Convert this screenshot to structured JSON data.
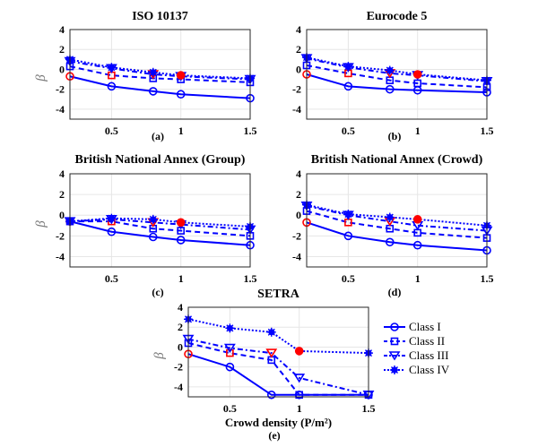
{
  "colors": {
    "series": "#0000ff",
    "highlight": "#ff0000",
    "grid": "#e6e6e6",
    "axis": "#262626"
  },
  "chart_data": [
    {
      "type": "line",
      "id": "a",
      "title": "ISO 10137",
      "panel_label": "(a)",
      "xlabel": "",
      "ylabel": "β",
      "x": [
        0.2,
        0.5,
        0.8,
        1.0,
        1.5
      ],
      "xlim": [
        0.2,
        1.5
      ],
      "ylim": [
        -5,
        4
      ],
      "xticks": [
        0.5,
        1,
        1.5
      ],
      "xtick_labels": [
        "0.5",
        "1",
        "1.5"
      ],
      "yticks": [
        -4,
        -2,
        0,
        2,
        4
      ],
      "ytick_labels": [
        "-4",
        "-2",
        "0",
        "2",
        "4"
      ],
      "grid": true,
      "series": [
        {
          "name": "Class I",
          "values": [
            -0.7,
            -1.7,
            -2.2,
            -2.5,
            -2.9
          ],
          "highlight_index": 0
        },
        {
          "name": "Class II",
          "values": [
            0.3,
            -0.6,
            -0.9,
            -1.0,
            -1.3
          ],
          "highlight_index": 1
        },
        {
          "name": "Class III",
          "values": [
            0.8,
            0.1,
            -0.5,
            -0.7,
            -1.0
          ],
          "highlight_index": 2
        },
        {
          "name": "Class IV",
          "values": [
            1.0,
            0.2,
            -0.3,
            -0.6,
            -0.9
          ],
          "highlight_index": 3
        }
      ]
    },
    {
      "type": "line",
      "id": "b",
      "title": "Eurocode 5",
      "panel_label": "(b)",
      "xlabel": "",
      "ylabel": "",
      "x": [
        0.2,
        0.5,
        0.8,
        1.0,
        1.5
      ],
      "xlim": [
        0.2,
        1.5
      ],
      "ylim": [
        -5,
        4
      ],
      "xticks": [
        0.5,
        1,
        1.5
      ],
      "xtick_labels": [
        "0.5",
        "1",
        "1.5"
      ],
      "yticks": [
        -4,
        -2,
        0,
        2,
        4
      ],
      "ytick_labels": [
        "-4",
        "-2",
        "0",
        "2",
        "4"
      ],
      "grid": true,
      "series": [
        {
          "name": "Class I",
          "values": [
            -0.5,
            -1.7,
            -2.0,
            -2.1,
            -2.3
          ],
          "highlight_index": 0
        },
        {
          "name": "Class II",
          "values": [
            0.4,
            -0.4,
            -1.1,
            -1.4,
            -1.8
          ],
          "highlight_index": 1
        },
        {
          "name": "Class III",
          "values": [
            1.1,
            0.2,
            -0.4,
            -0.6,
            -1.2
          ],
          "highlight_index": 2
        },
        {
          "name": "Class IV",
          "values": [
            1.2,
            0.3,
            -0.1,
            -0.5,
            -1.1
          ],
          "highlight_index": 3
        }
      ]
    },
    {
      "type": "line",
      "id": "c",
      "title": "British National Annex (Group)",
      "panel_label": "(c)",
      "xlabel": "",
      "ylabel": "β",
      "x": [
        0.2,
        0.5,
        0.8,
        1.0,
        1.5
      ],
      "xlim": [
        0.2,
        1.5
      ],
      "ylim": [
        -5,
        4
      ],
      "xticks": [
        0.5,
        1,
        1.5
      ],
      "xtick_labels": [
        "0.5",
        "1",
        "1.5"
      ],
      "yticks": [
        -4,
        -2,
        0,
        2,
        4
      ],
      "ytick_labels": [
        "-4",
        "-2",
        "0",
        "2",
        "4"
      ],
      "grid": true,
      "series": [
        {
          "name": "Class I",
          "values": [
            -0.6,
            -1.6,
            -2.1,
            -2.4,
            -2.9
          ],
          "highlight_index": 0
        },
        {
          "name": "Class II",
          "values": [
            -0.6,
            -0.6,
            -1.3,
            -1.5,
            -2.0
          ],
          "highlight_index": 1
        },
        {
          "name": "Class III",
          "values": [
            -0.6,
            -0.4,
            -0.7,
            -0.9,
            -1.4
          ],
          "highlight_index": 2
        },
        {
          "name": "Class IV",
          "values": [
            -0.6,
            -0.3,
            -0.4,
            -0.7,
            -1.1
          ],
          "highlight_index": 3
        }
      ]
    },
    {
      "type": "line",
      "id": "d",
      "title": "British National Annex (Crowd)",
      "panel_label": "(d)",
      "xlabel": "",
      "ylabel": "",
      "x": [
        0.2,
        0.5,
        0.8,
        1.0,
        1.5
      ],
      "xlim": [
        0.2,
        1.5
      ],
      "ylim": [
        -5,
        4
      ],
      "xticks": [
        0.5,
        1,
        1.5
      ],
      "xtick_labels": [
        "0.5",
        "1",
        "1.5"
      ],
      "yticks": [
        -4,
        -2,
        0,
        2,
        4
      ],
      "ytick_labels": [
        "-4",
        "-2",
        "0",
        "2",
        "4"
      ],
      "grid": true,
      "series": [
        {
          "name": "Class I",
          "values": [
            -0.7,
            -2.0,
            -2.6,
            -2.9,
            -3.4
          ],
          "highlight_index": 0
        },
        {
          "name": "Class II",
          "values": [
            0.4,
            -0.7,
            -1.3,
            -1.7,
            -2.2
          ],
          "highlight_index": 1
        },
        {
          "name": "Class III",
          "values": [
            0.9,
            0.0,
            -0.6,
            -1.0,
            -1.5
          ],
          "highlight_index": 2
        },
        {
          "name": "Class IV",
          "values": [
            1.0,
            0.1,
            -0.2,
            -0.4,
            -1.0
          ],
          "highlight_index": 3
        }
      ]
    },
    {
      "type": "line",
      "id": "e",
      "title": "SETRA",
      "panel_label": "(e)",
      "xlabel": "Crowd density (P/m²)",
      "ylabel": "β",
      "x": [
        0.2,
        0.5,
        0.8,
        1.0,
        1.5
      ],
      "xlim": [
        0.2,
        1.5
      ],
      "ylim": [
        -5,
        4
      ],
      "xticks": [
        0.5,
        1,
        1.5
      ],
      "xtick_labels": [
        "0.5",
        "1",
        "1.5"
      ],
      "yticks": [
        -4,
        -2,
        0,
        2,
        4
      ],
      "ytick_labels": [
        "-4",
        "-2",
        "0",
        "2",
        "4"
      ],
      "grid": true,
      "legend": {
        "placement": "right",
        "entries": [
          "Class I",
          "Class II",
          "Class III",
          "Class IV"
        ]
      },
      "series": [
        {
          "name": "Class I",
          "values": [
            -0.7,
            -2.0,
            -4.8,
            -4.8,
            -4.8
          ],
          "highlight_index": 0
        },
        {
          "name": "Class II",
          "values": [
            0.4,
            -0.6,
            -1.3,
            -4.8,
            -4.8
          ],
          "highlight_index": 1
        },
        {
          "name": "Class III",
          "values": [
            0.8,
            -0.1,
            -0.6,
            -3.1,
            -4.8
          ],
          "highlight_index": 2
        },
        {
          "name": "Class IV",
          "values": [
            2.8,
            1.9,
            1.5,
            -0.4,
            -0.6
          ],
          "highlight_index": 3
        }
      ]
    }
  ],
  "legend": {
    "entries": [
      {
        "label": "Class I",
        "marker": "circle-open",
        "line": "solid"
      },
      {
        "label": "Class II",
        "marker": "square-open",
        "line": "dashed"
      },
      {
        "label": "Class III",
        "marker": "triangle-down-open",
        "line": "dashdot"
      },
      {
        "label": "Class IV",
        "marker": "asterisk-filled",
        "line": "dotted"
      }
    ]
  }
}
